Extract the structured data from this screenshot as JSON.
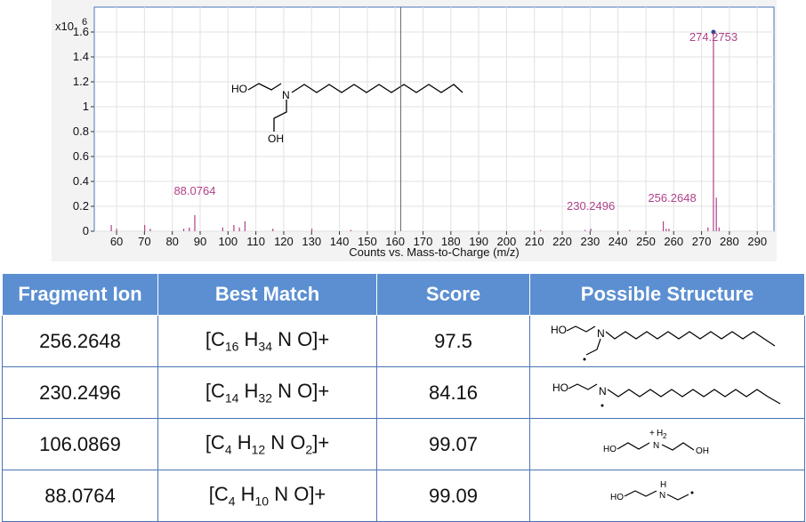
{
  "chart_data": {
    "type": "bar",
    "title": "",
    "xlabel": "Counts vs. Mass-to-Charge (m/z)",
    "ylabel": "",
    "y_multiplier": "x10",
    "y_exponent": "6",
    "xlim": [
      52,
      296
    ],
    "ylim": [
      0,
      1.8
    ],
    "x_ticks": [
      60,
      70,
      80,
      90,
      100,
      110,
      120,
      130,
      140,
      150,
      160,
      170,
      180,
      190,
      200,
      210,
      220,
      230,
      240,
      250,
      260,
      270,
      280,
      290
    ],
    "y_ticks": [
      "0",
      "0.2",
      "0.4",
      "0.6",
      "0.8",
      "1",
      "1.2",
      "1.4",
      "1.6"
    ],
    "cursor_x": 162,
    "marker_peak": 274.2753,
    "peaks": [
      {
        "mz": 58.1,
        "intensity": 0.05
      },
      {
        "mz": 60.0,
        "intensity": 0.02
      },
      {
        "mz": 70.1,
        "intensity": 0.05
      },
      {
        "mz": 72.1,
        "intensity": 0.02
      },
      {
        "mz": 84.1,
        "intensity": 0.02
      },
      {
        "mz": 86.1,
        "intensity": 0.03
      },
      {
        "mz": 88.0764,
        "intensity": 0.13
      },
      {
        "mz": 98.1,
        "intensity": 0.03
      },
      {
        "mz": 102.1,
        "intensity": 0.05
      },
      {
        "mz": 104.1,
        "intensity": 0.03
      },
      {
        "mz": 106.0869,
        "intensity": 0.08
      },
      {
        "mz": 116.1,
        "intensity": 0.02
      },
      {
        "mz": 130.1,
        "intensity": 0.02
      },
      {
        "mz": 144.1,
        "intensity": 0.01
      },
      {
        "mz": 212.2,
        "intensity": 0.01
      },
      {
        "mz": 228.2,
        "intensity": 0.01
      },
      {
        "mz": 230.2496,
        "intensity": 0.02
      },
      {
        "mz": 244.2,
        "intensity": 0.01
      },
      {
        "mz": 256.2648,
        "intensity": 0.08
      },
      {
        "mz": 257.3,
        "intensity": 0.02
      },
      {
        "mz": 258.3,
        "intensity": 0.02
      },
      {
        "mz": 272.3,
        "intensity": 0.03
      },
      {
        "mz": 274.2753,
        "intensity": 1.6
      },
      {
        "mz": 275.3,
        "intensity": 0.27
      },
      {
        "mz": 276.3,
        "intensity": 0.03
      }
    ],
    "annotations": [
      {
        "label": "274.2753",
        "mz": 274.2753,
        "intensity": 1.6
      },
      {
        "label": "88.0764",
        "mz": 88.0764,
        "intensity": 0.13
      },
      {
        "label": "230.2496",
        "mz": 230.2496,
        "intensity": 0.02
      },
      {
        "label": "256.2648",
        "mz": 256.2648,
        "intensity": 0.08
      }
    ]
  },
  "structure_labels": {
    "ho": "HO",
    "n": "N",
    "oh": "OH",
    "h2": "H",
    "h2_sub": "2",
    "h": "H",
    "plus": "+"
  },
  "table": {
    "headers": [
      "Fragment Ion",
      "Best Match",
      "Score",
      "Possible Structure"
    ],
    "rows": [
      {
        "ion": "256.2648",
        "formula": [
          {
            "el": "[C",
            "n": "16"
          },
          {
            "el": " H",
            "n": "34"
          },
          {
            "el": " N O]+",
            "n": ""
          }
        ],
        "score": "97.5",
        "structure": "s1"
      },
      {
        "ion": "230.2496",
        "formula": [
          {
            "el": "[C",
            "n": "14"
          },
          {
            "el": " H",
            "n": "32"
          },
          {
            "el": " N O]+",
            "n": ""
          }
        ],
        "score": "84.16",
        "structure": "s2"
      },
      {
        "ion": "106.0869",
        "formula": [
          {
            "el": "[C",
            "n": "4"
          },
          {
            "el": " H",
            "n": "12"
          },
          {
            "el": " N O",
            "n": "2"
          },
          {
            "el": "]+",
            "n": ""
          }
        ],
        "score": "99.07",
        "structure": "s3"
      },
      {
        "ion": "88.0764",
        "formula": [
          {
            "el": "[C",
            "n": "4"
          },
          {
            "el": " H",
            "n": "10"
          },
          {
            "el": " N O]+",
            "n": ""
          }
        ],
        "score": "99.09",
        "structure": "s4"
      }
    ]
  },
  "colors": {
    "peak": "#b0428a",
    "axis_frame": "#4a74b4",
    "header_bg": "#5b8fd1",
    "grid": "#e2e2e2",
    "cursor": "#666666"
  }
}
